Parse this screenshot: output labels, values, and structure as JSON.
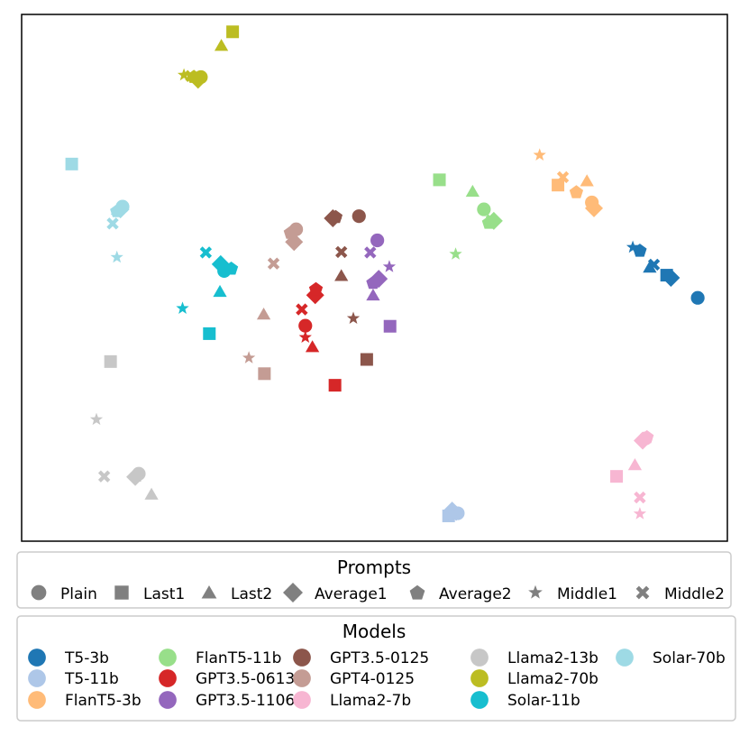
{
  "chart_data": {
    "type": "scatter",
    "title": "",
    "xlabel": "",
    "ylabel": "",
    "axes_visible": false,
    "xlim": [
      0,
      100
    ],
    "ylim": [
      0,
      100
    ],
    "prompts_legend": {
      "title": "Prompts",
      "items": [
        {
          "name": "Plain",
          "marker": "circle"
        },
        {
          "name": "Last1",
          "marker": "square"
        },
        {
          "name": "Last2",
          "marker": "triangle"
        },
        {
          "name": "Average1",
          "marker": "diamond"
        },
        {
          "name": "Average2",
          "marker": "pentagon"
        },
        {
          "name": "Middle1",
          "marker": "star"
        },
        {
          "name": "Middle2",
          "marker": "x"
        }
      ]
    },
    "models_legend": {
      "title": "Models",
      "items": [
        {
          "name": "T5-3b",
          "color": "#1f77b4"
        },
        {
          "name": "T5-11b",
          "color": "#aec7e8"
        },
        {
          "name": "FlanT5-3b",
          "color": "#ffbb78"
        },
        {
          "name": "FlanT5-11b",
          "color": "#98df8a"
        },
        {
          "name": "GPT3.5-0613",
          "color": "#d62728"
        },
        {
          "name": "GPT3.5-1106",
          "color": "#9467bd"
        },
        {
          "name": "GPT3.5-0125",
          "color": "#8c564b"
        },
        {
          "name": "GPT4-0125",
          "color": "#c49c94"
        },
        {
          "name": "Llama2-7b",
          "color": "#f7b6d2"
        },
        {
          "name": "Llama2-13b",
          "color": "#c7c7c7"
        },
        {
          "name": "Llama2-70b",
          "color": "#bcbd22"
        },
        {
          "name": "Solar-11b",
          "color": "#17becf"
        },
        {
          "name": "Solar-70b",
          "color": "#9edae5"
        }
      ]
    },
    "series": [
      {
        "name": "T5-3b",
        "color": "#1f77b4",
        "points": [
          {
            "prompt": "Plain",
            "x": 95.8,
            "y": 46.2
          },
          {
            "prompt": "Last1",
            "x": 91.4,
            "y": 50.5
          },
          {
            "prompt": "Last2",
            "x": 89.0,
            "y": 52.0
          },
          {
            "prompt": "Average1",
            "x": 92.0,
            "y": 50.0
          },
          {
            "prompt": "Average2",
            "x": 87.6,
            "y": 55.2
          },
          {
            "prompt": "Middle1",
            "x": 86.6,
            "y": 55.8
          },
          {
            "prompt": "Middle2",
            "x": 89.6,
            "y": 52.5
          }
        ]
      },
      {
        "name": "T5-11b",
        "color": "#aec7e8",
        "points": [
          {
            "prompt": "Plain",
            "x": 61.8,
            "y": 5.3
          },
          {
            "prompt": "Last1",
            "x": 60.5,
            "y": 4.8
          },
          {
            "prompt": "Last2",
            "x": 60.7,
            "y": 5.5
          },
          {
            "prompt": "Average1",
            "x": 61.0,
            "y": 5.8
          },
          {
            "prompt": "Average2",
            "x": 61.4,
            "y": 5.6
          },
          {
            "prompt": "Middle1",
            "x": 60.6,
            "y": 5.2
          },
          {
            "prompt": "Middle2",
            "x": 61.1,
            "y": 5.0
          }
        ]
      },
      {
        "name": "FlanT5-3b",
        "color": "#ffbb78",
        "points": [
          {
            "prompt": "Plain",
            "x": 80.8,
            "y": 64.3
          },
          {
            "prompt": "Last1",
            "x": 76.0,
            "y": 67.6
          },
          {
            "prompt": "Last2",
            "x": 80.1,
            "y": 68.4
          },
          {
            "prompt": "Average1",
            "x": 81.1,
            "y": 63.2
          },
          {
            "prompt": "Average2",
            "x": 78.6,
            "y": 66.3
          },
          {
            "prompt": "Middle1",
            "x": 73.4,
            "y": 73.3
          },
          {
            "prompt": "Middle2",
            "x": 76.7,
            "y": 69.1
          }
        ]
      },
      {
        "name": "FlanT5-11b",
        "color": "#98df8a",
        "points": [
          {
            "prompt": "Plain",
            "x": 65.5,
            "y": 63.0
          },
          {
            "prompt": "Last1",
            "x": 59.2,
            "y": 68.6
          },
          {
            "prompt": "Last2",
            "x": 63.9,
            "y": 66.4
          },
          {
            "prompt": "Average1",
            "x": 66.9,
            "y": 60.8
          },
          {
            "prompt": "Average2",
            "x": 66.2,
            "y": 60.5
          },
          {
            "prompt": "Middle1",
            "x": 61.5,
            "y": 54.5
          },
          {
            "prompt": "Middle2",
            "x": 66.6,
            "y": 60.9
          }
        ]
      },
      {
        "name": "GPT3.5-0613",
        "color": "#d62728",
        "points": [
          {
            "prompt": "Plain",
            "x": 40.2,
            "y": 40.9
          },
          {
            "prompt": "Last1",
            "x": 44.4,
            "y": 29.6
          },
          {
            "prompt": "Last2",
            "x": 41.2,
            "y": 36.9
          },
          {
            "prompt": "Average1",
            "x": 41.6,
            "y": 46.7
          },
          {
            "prompt": "Average2",
            "x": 41.7,
            "y": 47.9
          },
          {
            "prompt": "Middle1",
            "x": 40.2,
            "y": 38.7
          },
          {
            "prompt": "Middle2",
            "x": 39.7,
            "y": 44.0
          }
        ]
      },
      {
        "name": "GPT3.5-1106",
        "color": "#9467bd",
        "points": [
          {
            "prompt": "Plain",
            "x": 50.4,
            "y": 57.1
          },
          {
            "prompt": "Last1",
            "x": 52.2,
            "y": 40.8
          },
          {
            "prompt": "Last2",
            "x": 49.8,
            "y": 46.7
          },
          {
            "prompt": "Average1",
            "x": 50.6,
            "y": 49.8
          },
          {
            "prompt": "Average2",
            "x": 49.8,
            "y": 49.1
          },
          {
            "prompt": "Middle1",
            "x": 52.1,
            "y": 52.1
          },
          {
            "prompt": "Middle2",
            "x": 49.4,
            "y": 54.8
          }
        ]
      },
      {
        "name": "GPT3.5-0125",
        "color": "#8c564b",
        "points": [
          {
            "prompt": "Plain",
            "x": 47.8,
            "y": 61.7
          },
          {
            "prompt": "Last1",
            "x": 48.9,
            "y": 34.5
          },
          {
            "prompt": "Last2",
            "x": 45.3,
            "y": 50.4
          },
          {
            "prompt": "Average1",
            "x": 44.1,
            "y": 61.3
          },
          {
            "prompt": "Average2",
            "x": 44.5,
            "y": 61.6
          },
          {
            "prompt": "Middle1",
            "x": 47.0,
            "y": 42.3
          },
          {
            "prompt": "Middle2",
            "x": 45.3,
            "y": 54.9
          }
        ]
      },
      {
        "name": "GPT4-0125",
        "color": "#c49c94",
        "points": [
          {
            "prompt": "Plain",
            "x": 38.9,
            "y": 59.2
          },
          {
            "prompt": "Last1",
            "x": 34.4,
            "y": 31.8
          },
          {
            "prompt": "Last2",
            "x": 34.3,
            "y": 43.1
          },
          {
            "prompt": "Average1",
            "x": 38.6,
            "y": 56.8
          },
          {
            "prompt": "Average2",
            "x": 38.1,
            "y": 58.6
          },
          {
            "prompt": "Middle1",
            "x": 32.2,
            "y": 34.8
          },
          {
            "prompt": "Middle2",
            "x": 35.7,
            "y": 52.7
          }
        ]
      },
      {
        "name": "Llama2-7b",
        "color": "#f7b6d2",
        "points": [
          {
            "prompt": "Plain",
            "x": 88.4,
            "y": 19.5
          },
          {
            "prompt": "Last1",
            "x": 84.3,
            "y": 12.3
          },
          {
            "prompt": "Last2",
            "x": 86.9,
            "y": 14.5
          },
          {
            "prompt": "Average1",
            "x": 88.0,
            "y": 19.1
          },
          {
            "prompt": "Average2",
            "x": 88.6,
            "y": 19.8
          },
          {
            "prompt": "Middle1",
            "x": 87.6,
            "y": 5.2
          },
          {
            "prompt": "Middle2",
            "x": 87.6,
            "y": 8.3
          }
        ]
      },
      {
        "name": "Llama2-13b",
        "color": "#c7c7c7",
        "points": [
          {
            "prompt": "Plain",
            "x": 16.6,
            "y": 12.8
          },
          {
            "prompt": "Last1",
            "x": 12.6,
            "y": 34.1
          },
          {
            "prompt": "Last2",
            "x": 18.4,
            "y": 8.9
          },
          {
            "prompt": "Average1",
            "x": 16.1,
            "y": 12.2
          },
          {
            "prompt": "Average2",
            "x": 16.3,
            "y": 12.5
          },
          {
            "prompt": "Middle1",
            "x": 10.6,
            "y": 23.1
          },
          {
            "prompt": "Middle2",
            "x": 11.7,
            "y": 12.3
          }
        ]
      },
      {
        "name": "Llama2-70b",
        "color": "#bcbd22",
        "points": [
          {
            "prompt": "Plain",
            "x": 25.4,
            "y": 88.1
          },
          {
            "prompt": "Last1",
            "x": 29.9,
            "y": 96.7
          },
          {
            "prompt": "Last2",
            "x": 28.3,
            "y": 94.1
          },
          {
            "prompt": "Average1",
            "x": 25.0,
            "y": 87.6
          },
          {
            "prompt": "Average2",
            "x": 24.4,
            "y": 88.2
          },
          {
            "prompt": "Middle1",
            "x": 23.0,
            "y": 88.5
          },
          {
            "prompt": "Middle2",
            "x": 24.0,
            "y": 88.3
          }
        ]
      },
      {
        "name": "Solar-11b",
        "color": "#17becf",
        "points": [
          {
            "prompt": "Plain",
            "x": 28.7,
            "y": 51.3
          },
          {
            "prompt": "Last1",
            "x": 26.6,
            "y": 39.4
          },
          {
            "prompt": "Last2",
            "x": 28.1,
            "y": 47.4
          },
          {
            "prompt": "Average1",
            "x": 28.2,
            "y": 52.6
          },
          {
            "prompt": "Average2",
            "x": 29.7,
            "y": 51.8
          },
          {
            "prompt": "Middle1",
            "x": 22.8,
            "y": 44.2
          },
          {
            "prompt": "Middle2",
            "x": 26.1,
            "y": 54.8
          }
        ]
      },
      {
        "name": "Solar-70b",
        "color": "#9edae5",
        "points": [
          {
            "prompt": "Plain",
            "x": 14.3,
            "y": 63.5
          },
          {
            "prompt": "Last1",
            "x": 7.1,
            "y": 71.6
          },
          {
            "prompt": "Last2",
            "x": 13.6,
            "y": 63.0
          },
          {
            "prompt": "Average1",
            "x": 14.0,
            "y": 63.0
          },
          {
            "prompt": "Average2",
            "x": 13.5,
            "y": 62.7
          },
          {
            "prompt": "Middle1",
            "x": 13.5,
            "y": 53.9
          },
          {
            "prompt": "Middle2",
            "x": 12.9,
            "y": 60.3
          }
        ]
      }
    ]
  }
}
